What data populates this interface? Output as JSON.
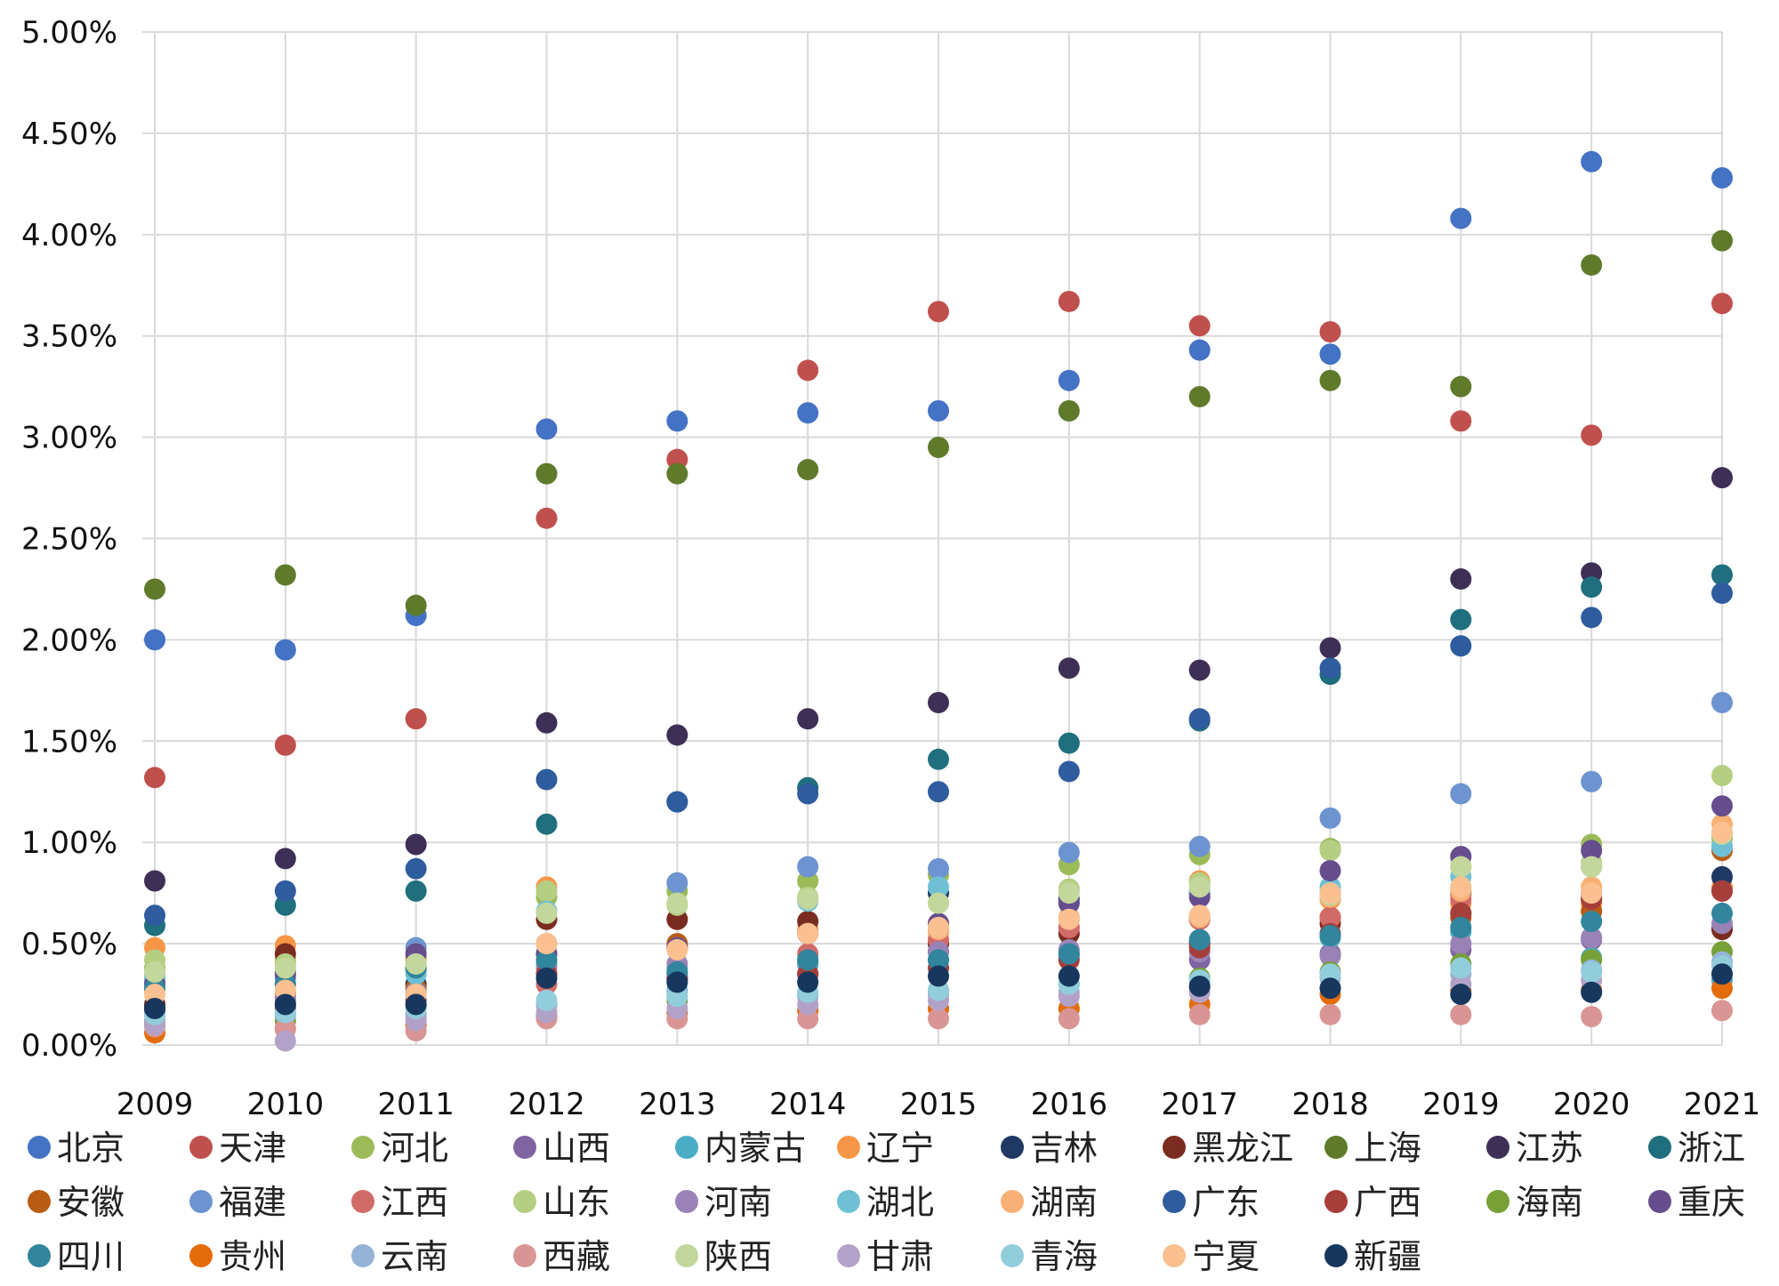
{
  "chart_data": {
    "type": "scatter",
    "title": "",
    "xlabel": "",
    "ylabel": "",
    "ylim": [
      0,
      5
    ],
    "y_tick_labels": [
      "0.00%",
      "0.50%",
      "1.00%",
      "1.50%",
      "2.00%",
      "2.50%",
      "3.00%",
      "3.50%",
      "4.00%",
      "4.50%",
      "5.00%"
    ],
    "x": [
      "2009",
      "2010",
      "2011",
      "2012",
      "2013",
      "2014",
      "2015",
      "2016",
      "2017",
      "2018",
      "2019",
      "2020",
      "2021"
    ],
    "grid": true,
    "legend_position": "bottom",
    "series": [
      {
        "name": "北京",
        "color": "#4472C4",
        "values": [
          2.0,
          1.95,
          2.12,
          3.04,
          3.08,
          3.12,
          3.13,
          3.28,
          3.43,
          3.41,
          4.08,
          4.36,
          4.28
        ]
      },
      {
        "name": "天津",
        "color": "#C0504D",
        "values": [
          1.32,
          1.48,
          1.61,
          2.6,
          2.89,
          3.33,
          3.62,
          3.67,
          3.55,
          3.52,
          3.08,
          3.01,
          3.66
        ]
      },
      {
        "name": "河北",
        "color": "#9BBB59",
        "values": [
          0.38,
          0.42,
          0.43,
          0.73,
          0.76,
          0.81,
          0.84,
          0.89,
          0.94,
          0.97,
          0.88,
          0.99,
          1.02
        ]
      },
      {
        "name": "山西",
        "color": "#8064A2",
        "values": [
          0.2,
          0.23,
          0.25,
          0.35,
          0.32,
          0.4,
          0.46,
          0.45,
          0.42,
          0.45,
          0.47,
          0.52,
          0.58
        ]
      },
      {
        "name": "内蒙古",
        "color": "#4BACC6",
        "values": [
          0.35,
          0.36,
          0.37,
          0.4,
          0.38,
          0.4,
          0.42,
          0.44,
          0.51,
          0.53,
          0.56,
          0.43,
          0.32
        ]
      },
      {
        "name": "辽宁",
        "color": "#F79646",
        "values": [
          0.48,
          0.49,
          0.42,
          0.78,
          0.49,
          0.57,
          0.56,
          0.62,
          0.81,
          0.72,
          0.7,
          0.7,
          0.78
        ]
      },
      {
        "name": "吉林",
        "color": "#1F3864",
        "values": [
          0.18,
          0.2,
          0.3,
          0.45,
          0.33,
          0.35,
          0.75,
          0.72,
          0.75,
          0.75,
          0.75,
          0.75,
          0.83
        ]
      },
      {
        "name": "黑龙江",
        "color": "#7B2C20",
        "values": [
          0.2,
          0.45,
          0.38,
          0.62,
          0.62,
          0.61,
          0.5,
          0.55,
          0.5,
          0.6,
          0.65,
          0.72,
          0.57
        ]
      },
      {
        "name": "上海",
        "color": "#5E7A2A",
        "values": [
          2.25,
          2.32,
          2.17,
          2.82,
          2.82,
          2.84,
          2.95,
          3.13,
          3.2,
          3.28,
          3.25,
          3.85,
          3.97
        ]
      },
      {
        "name": "江苏",
        "color": "#3E2F57",
        "values": [
          0.81,
          0.92,
          0.99,
          1.59,
          1.53,
          1.61,
          1.69,
          1.86,
          1.85,
          1.96,
          2.3,
          2.33,
          2.8
        ]
      },
      {
        "name": "浙江",
        "color": "#1F6F7E",
        "values": [
          0.59,
          0.69,
          0.76,
          1.09,
          1.2,
          1.27,
          1.41,
          1.49,
          1.6,
          1.83,
          2.1,
          2.26,
          2.32
        ]
      },
      {
        "name": "安徽",
        "color": "#B85C14",
        "values": [
          0.16,
          0.26,
          0.28,
          0.5,
          0.5,
          0.55,
          0.57,
          0.58,
          0.62,
          0.63,
          0.63,
          0.66,
          0.96
        ]
      },
      {
        "name": "福建",
        "color": "#6D93D1",
        "values": [
          0.32,
          0.33,
          0.48,
          0.45,
          0.8,
          0.88,
          0.87,
          0.95,
          0.98,
          1.12,
          1.24,
          1.3,
          1.69
        ]
      },
      {
        "name": "江西",
        "color": "#D16B68",
        "values": [
          0.12,
          0.15,
          0.2,
          0.3,
          0.35,
          0.45,
          0.52,
          0.58,
          0.62,
          0.63,
          0.72,
          0.73,
          0.76
        ]
      },
      {
        "name": "山东",
        "color": "#B5CF82",
        "values": [
          0.42,
          0.4,
          0.45,
          0.76,
          0.69,
          0.73,
          0.7,
          0.77,
          0.8,
          0.96,
          0.88,
          0.9,
          1.33
        ]
      },
      {
        "name": "河南",
        "color": "#9983B6",
        "values": [
          0.17,
          0.22,
          0.26,
          0.38,
          0.4,
          0.42,
          0.46,
          0.47,
          0.46,
          0.44,
          0.5,
          0.53,
          0.6
        ]
      },
      {
        "name": "湖北",
        "color": "#6FC0D4",
        "values": [
          0.33,
          0.36,
          0.35,
          0.66,
          0.27,
          0.71,
          0.78,
          0.7,
          0.76,
          0.78,
          0.83,
          0.88,
          0.98
        ]
      },
      {
        "name": "湖南",
        "color": "#F9B074",
        "values": [
          0.27,
          0.3,
          0.25,
          0.5,
          0.48,
          0.55,
          0.57,
          0.63,
          0.63,
          0.73,
          0.76,
          0.78,
          1.09
        ]
      },
      {
        "name": "广东",
        "color": "#2E5C9E",
        "values": [
          0.64,
          0.76,
          0.87,
          1.31,
          1.2,
          1.24,
          1.25,
          1.35,
          1.61,
          1.86,
          1.97,
          2.11,
          2.23
        ]
      },
      {
        "name": "广西",
        "color": "#A63E3A",
        "values": [
          0.15,
          0.18,
          0.22,
          0.35,
          0.33,
          0.35,
          0.38,
          0.42,
          0.48,
          0.55,
          0.65,
          0.72,
          0.76
        ]
      },
      {
        "name": "海南",
        "color": "#77A136",
        "values": [
          0.1,
          0.12,
          0.15,
          0.2,
          0.22,
          0.25,
          0.27,
          0.3,
          0.33,
          0.36,
          0.4,
          0.42,
          0.46
        ]
      },
      {
        "name": "重庆",
        "color": "#664D8E",
        "values": [
          0.3,
          0.35,
          0.45,
          0.45,
          0.48,
          0.55,
          0.6,
          0.7,
          0.73,
          0.86,
          0.93,
          0.96,
          1.18
        ]
      },
      {
        "name": "四川",
        "color": "#31859C",
        "values": [
          0.28,
          0.3,
          0.38,
          0.42,
          0.36,
          0.42,
          0.42,
          0.45,
          0.52,
          0.54,
          0.58,
          0.61,
          0.65
        ]
      },
      {
        "name": "贵州",
        "color": "#E46C0A",
        "values": [
          0.06,
          0.08,
          0.1,
          0.14,
          0.16,
          0.17,
          0.18,
          0.18,
          0.2,
          0.25,
          0.27,
          0.27,
          0.28
        ]
      },
      {
        "name": "云南",
        "color": "#95B3D7",
        "values": [
          0.12,
          0.15,
          0.14,
          0.2,
          0.26,
          0.24,
          0.25,
          0.26,
          0.28,
          0.33,
          0.35,
          0.37,
          0.41
        ]
      },
      {
        "name": "西藏",
        "color": "#D99594",
        "values": [
          0.09,
          0.08,
          0.07,
          0.13,
          0.13,
          0.13,
          0.13,
          0.13,
          0.15,
          0.15,
          0.15,
          0.14,
          0.17
        ]
      },
      {
        "name": "陕西",
        "color": "#C3D69B",
        "values": [
          0.36,
          0.38,
          0.4,
          0.65,
          0.7,
          0.72,
          0.7,
          0.75,
          0.78,
          0.74,
          0.88,
          0.88,
          1.04
        ]
      },
      {
        "name": "甘肃",
        "color": "#B3A2C7",
        "values": [
          0.1,
          0.02,
          0.12,
          0.16,
          0.18,
          0.2,
          0.22,
          0.24,
          0.26,
          0.28,
          0.3,
          0.32,
          0.35
        ]
      },
      {
        "name": "青海",
        "color": "#92CDDC",
        "values": [
          0.15,
          0.16,
          0.18,
          0.22,
          0.24,
          0.26,
          0.27,
          0.3,
          0.32,
          0.35,
          0.38,
          0.36,
          0.39
        ]
      },
      {
        "name": "宁夏",
        "color": "#FAC090",
        "values": [
          0.25,
          0.27,
          0.25,
          0.5,
          0.47,
          0.55,
          0.58,
          0.62,
          0.64,
          0.75,
          0.78,
          0.75,
          1.05
        ]
      },
      {
        "name": "新疆",
        "color": "#17375E",
        "values": [
          0.18,
          0.2,
          0.2,
          0.33,
          0.31,
          0.31,
          0.34,
          0.34,
          0.29,
          0.28,
          0.25,
          0.26,
          0.35
        ]
      }
    ]
  }
}
